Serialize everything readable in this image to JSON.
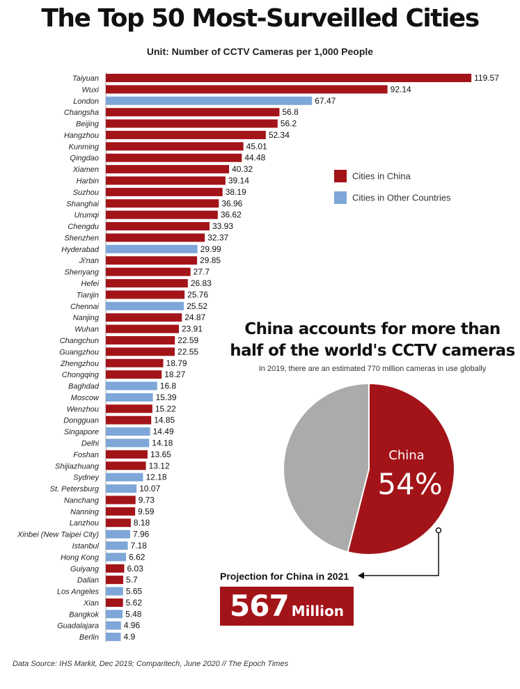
{
  "title": "The Top 50 Most-Surveilled Cities",
  "subtitle": "Unit: Number of CCTV Cameras per 1,000 People",
  "colors": {
    "china": "#a31419",
    "other": "#7ea6d8",
    "pie_other": "#ababab"
  },
  "chart_data": [
    {
      "type": "bar",
      "orientation": "horizontal",
      "categories": [
        "Taiyuan",
        "Wuxi",
        "London",
        "Changsha",
        "Beijing",
        "Hangzhou",
        "Kunming",
        "Qingdao",
        "Xiamen",
        "Harbin",
        "Suzhou",
        "Shanghai",
        "Urumqi",
        "Chengdu",
        "Shenzhen",
        "Hyderabad",
        "Ji'nan",
        "Shenyang",
        "Hefei",
        "Tianjin",
        "Chennai",
        "Nanjing",
        "Wuhan",
        "Changchun",
        "Guangzhou",
        "Zhengzhou",
        "Chongqing",
        "Baghdad",
        "Moscow",
        "Wenzhou",
        "Dongguan",
        "Singapore",
        "Delhi",
        "Foshan",
        "Shijiazhuang",
        "Sydney",
        "St. Petersburg",
        "Nanchang",
        "Nanning",
        "Lanzhou",
        "Xinbei (New Taipei City)",
        "Istanbul",
        "Hong Kong",
        "Guiyang",
        "Dalian",
        "Los Angeles",
        "Xian",
        "Bangkok",
        "Guadalajara",
        "Berlin"
      ],
      "values": [
        119.57,
        92.14,
        67.47,
        56.8,
        56.2,
        52.34,
        45.01,
        44.48,
        40.32,
        39.14,
        38.19,
        36.96,
        36.62,
        33.93,
        32.37,
        29.99,
        29.85,
        27.7,
        26.83,
        25.76,
        25.52,
        24.87,
        23.91,
        22.59,
        22.55,
        18.79,
        18.27,
        16.8,
        15.39,
        15.22,
        14.85,
        14.49,
        14.18,
        13.65,
        13.12,
        12.18,
        10.07,
        9.73,
        9.59,
        8.18,
        7.96,
        7.18,
        6.62,
        6.03,
        5.7,
        5.65,
        5.62,
        5.48,
        4.96,
        4.9
      ],
      "value_labels": [
        "119.57",
        "92.14",
        "67.47",
        "56.8",
        "56.2",
        "52.34",
        "45.01",
        "44.48",
        "40.32",
        "39.14",
        "38.19",
        "36.96",
        "36.62",
        "33.93",
        "32.37",
        "29.99",
        "29.85",
        "27.7",
        "26.83",
        "25.76",
        "25.52",
        "24.87",
        "23.91",
        "22.59",
        "22.55",
        "18.79",
        "18.27",
        "16.8",
        "15.39",
        "15.22",
        "14.85",
        "14.49",
        "14.18",
        "13.65",
        "13.12",
        "12.18",
        "10.07",
        "9.73",
        "9.59",
        "8.18",
        "7.96",
        "7.18",
        "6.62",
        "6.03",
        "5.7",
        "5.65",
        "5.62",
        "5.48",
        "4.96",
        "4.9"
      ],
      "group": [
        "china",
        "china",
        "other",
        "china",
        "china",
        "china",
        "china",
        "china",
        "china",
        "china",
        "china",
        "china",
        "china",
        "china",
        "china",
        "other",
        "china",
        "china",
        "china",
        "china",
        "other",
        "china",
        "china",
        "china",
        "china",
        "china",
        "china",
        "other",
        "other",
        "china",
        "china",
        "other",
        "other",
        "china",
        "china",
        "other",
        "other",
        "china",
        "china",
        "china",
        "other",
        "other",
        "other",
        "china",
        "china",
        "other",
        "china",
        "other",
        "other",
        "other"
      ],
      "legend": [
        {
          "label": "Cities in China",
          "group": "china"
        },
        {
          "label": "Cities in Other Countries",
          "group": "other"
        }
      ],
      "xlim": [
        0,
        120
      ],
      "grid": false
    },
    {
      "type": "pie",
      "heading": "China accounts for more than half of the world's CCTV cameras",
      "note": "In 2019, there are an estimated 770 million cameras in use globally",
      "slices": [
        {
          "label": "China",
          "value": 54,
          "display": "54%",
          "group": "china"
        },
        {
          "label": "",
          "value": 46,
          "group": "pie_other"
        }
      ]
    }
  ],
  "projection": {
    "label": "Projection for China in 2021",
    "number": "567",
    "unit": "Million"
  },
  "footer": "Data Source: IHS Markit, Dec 2019; Comparitech, June 2020  //  The Epoch Times"
}
